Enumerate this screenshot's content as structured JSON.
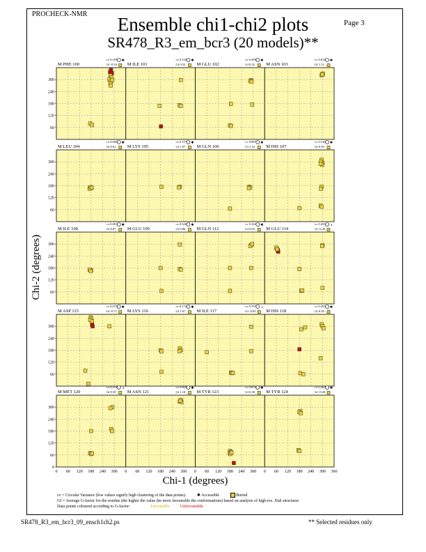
{
  "header": {
    "program": "PROCHECK-NMR",
    "page_label": "Page  3",
    "title": "Ensemble chi1-chi2 plots",
    "subtitle": "SR478_R3_em_bcr3 (20 models)**"
  },
  "footnotes": {
    "cv_line": "cv = Circular Variance (low values signify high clustering of the data points).",
    "accessible_label": "Accessible",
    "buried_label": "Buried",
    "gf_line": "Gf = Average G-factor for the residue (the higher the value the more favourable the conformations) based on analysis of high-res. Xtal structures",
    "colour_line": "Data points coloured according to G-factor:",
    "favourable_label": "Favourable",
    "unfavourable_label": "Unfavourable"
  },
  "footer": {
    "filename": "SR478_R3_em_bcr3_09_ensch1ch2.ps",
    "selected_note": "** Selected residues only"
  },
  "colors": {
    "panel_bg": "#fdf8b0",
    "favourable": "#f0d030",
    "unfavourable": "#c01010",
    "grid": "#999999"
  },
  "chart_data": {
    "type": "scatter",
    "xlabel": "Chi-1 (degrees)",
    "ylabel": "Chi-2 (degrees)",
    "xlim": [
      0,
      360
    ],
    "ylim": [
      0,
      360
    ],
    "xticks": [
      0,
      60,
      120,
      180,
      240,
      300,
      360
    ],
    "xtick_labels": [
      "0",
      "60",
      "120",
      "180",
      "240",
      "300",
      "360"
    ],
    "yticks": [
      0,
      60,
      120,
      180,
      240,
      300
    ],
    "ytick_labels": [
      "0",
      "60",
      "120",
      "180",
      "240",
      "300"
    ],
    "grid": true,
    "panels": [
      {
        "label": "M PHE 100",
        "cv": "0.183",
        "gf": "-0.16",
        "access": "accessible",
        "points": [
          [
            283,
            348,
            "u"
          ],
          [
            278,
            338,
            "u"
          ],
          [
            288,
            332,
            "u"
          ],
          [
            280,
            320,
            "f"
          ],
          [
            285,
            310,
            "f"
          ],
          [
            275,
            300,
            "f"
          ],
          [
            282,
            290,
            "f"
          ],
          [
            280,
            280,
            "f"
          ],
          [
            282,
            270,
            "f"
          ],
          [
            290,
            298,
            "f"
          ],
          [
            175,
            80,
            "f"
          ],
          [
            185,
            72,
            "f"
          ]
        ]
      },
      {
        "label": "M ILE 101",
        "cv": "0.232",
        "gf": "0.52",
        "access": "accessible",
        "points": [
          [
            285,
            298,
            "f"
          ],
          [
            278,
            172,
            "f"
          ],
          [
            285,
            168,
            "f"
          ],
          [
            175,
            168,
            "f"
          ],
          [
            182,
            65,
            "u"
          ]
        ]
      },
      {
        "label": "M GLU 102",
        "cv": "0.439",
        "gf": "0.52",
        "access": "accessible",
        "points": [
          [
            290,
            298,
            "f"
          ],
          [
            285,
            292,
            "f"
          ],
          [
            292,
            290,
            "f"
          ],
          [
            295,
            175,
            "f"
          ],
          [
            185,
            178,
            "f"
          ],
          [
            180,
            70,
            "f"
          ],
          [
            186,
            68,
            "f"
          ]
        ]
      },
      {
        "label": "M ASN 103",
        "cv": "0.012",
        "gf": "1.12",
        "access": "accessible",
        "points": [
          [
            300,
            328,
            "f"
          ],
          [
            295,
            322,
            "f"
          ],
          [
            302,
            330,
            "f"
          ],
          [
            298,
            325,
            "f"
          ]
        ]
      },
      {
        "label": "M LEU 104",
        "cv": "0.002",
        "gf": "0.61",
        "access": "accessible",
        "points": [
          [
            175,
            170,
            "f"
          ],
          [
            180,
            168,
            "f"
          ],
          [
            172,
            165,
            "f"
          ],
          [
            178,
            173,
            "f"
          ],
          [
            183,
            170,
            "f"
          ]
        ]
      },
      {
        "label": "M LYS 105",
        "cv": "0.157",
        "gf": "1.07",
        "access": "accessible",
        "points": [
          [
            185,
            175,
            "f"
          ],
          [
            280,
            175,
            "f"
          ],
          [
            275,
            172,
            "f"
          ]
        ]
      },
      {
        "label": "M GLN 106",
        "cv": "0.067",
        "gf": "1.16",
        "access": "accessible",
        "points": [
          [
            280,
            175,
            "f"
          ],
          [
            285,
            172,
            "f"
          ],
          [
            278,
            168,
            "f"
          ],
          [
            180,
            65,
            "f"
          ]
        ]
      },
      {
        "label": "M HIS 107",
        "cv": "0.310",
        "gf": "0.59",
        "access": "accessible",
        "points": [
          [
            295,
            310,
            "f"
          ],
          [
            300,
            295,
            "f"
          ],
          [
            292,
            300,
            "f"
          ],
          [
            298,
            285,
            "f"
          ],
          [
            290,
            290,
            "f"
          ],
          [
            295,
            175,
            "f"
          ],
          [
            292,
            165,
            "f"
          ],
          [
            290,
            80,
            "f"
          ],
          [
            295,
            75,
            "f"
          ],
          [
            180,
            68,
            "f"
          ]
        ]
      },
      {
        "label": "M ILE 108",
        "cv": "0.001",
        "gf": "0.87",
        "access": "accessible",
        "points": [
          [
            175,
            170,
            "f"
          ],
          [
            180,
            168,
            "f"
          ],
          [
            172,
            172,
            "f"
          ],
          [
            178,
            165,
            "f"
          ]
        ]
      },
      {
        "label": "M GLU 109",
        "cv": "0.326",
        "gf": "0.86",
        "access": "accessible",
        "points": [
          [
            280,
            298,
            "f"
          ],
          [
            280,
            175,
            "f"
          ],
          [
            285,
            172,
            "f"
          ],
          [
            180,
            180,
            "f"
          ],
          [
            185,
            65,
            "f"
          ]
        ]
      },
      {
        "label": "M GLN 112",
        "cv": "0.321",
        "gf": "0.65",
        "access": "accessible",
        "points": [
          [
            290,
            295,
            "f"
          ],
          [
            285,
            290,
            "f"
          ],
          [
            295,
            300,
            "f"
          ],
          [
            290,
            180,
            "f"
          ],
          [
            180,
            180,
            "f"
          ],
          [
            180,
            65,
            "f"
          ]
        ]
      },
      {
        "label": "M GLU 114",
        "cv": "0.453",
        "gf": "-0.20",
        "access": "buried",
        "points": [
          [
            62,
            278,
            "u"
          ],
          [
            68,
            270,
            "u"
          ],
          [
            70,
            262,
            "u"
          ],
          [
            60,
            282,
            "f"
          ],
          [
            65,
            274,
            "f"
          ],
          [
            300,
            295,
            "f"
          ],
          [
            298,
            290,
            "f"
          ],
          [
            180,
            175,
            "f"
          ],
          [
            190,
            65,
            "f"
          ],
          [
            195,
            68,
            "f"
          ],
          [
            300,
            80,
            "f"
          ]
        ]
      },
      {
        "label": "M ASP 115",
        "cv": "0.075",
        "gf": "-0.71",
        "access": "accessible",
        "points": [
          [
            178,
            345,
            "f"
          ],
          [
            182,
            338,
            "f"
          ],
          [
            175,
            332,
            "f"
          ],
          [
            185,
            325,
            "f"
          ],
          [
            185,
            308,
            "u"
          ],
          [
            188,
            300,
            "u"
          ],
          [
            275,
            300,
            "f"
          ],
          [
            150,
            78,
            "f"
          ],
          [
            165,
            12,
            "f"
          ]
        ]
      },
      {
        "label": "M LYS 116",
        "cv": "0.172",
        "gf": "1.07",
        "access": "accessible",
        "points": [
          [
            280,
            190,
            "f"
          ],
          [
            285,
            180,
            "f"
          ],
          [
            278,
            175,
            "f"
          ],
          [
            180,
            180,
            "f"
          ],
          [
            185,
            175,
            "f"
          ],
          [
            185,
            72,
            "f"
          ]
        ]
      },
      {
        "label": "M ILE 117",
        "cv": "0.707",
        "gf": "-0.03",
        "access": "buried",
        "points": [
          [
            290,
            298,
            "f"
          ],
          [
            290,
            175,
            "f"
          ],
          [
            60,
            170,
            "f"
          ],
          [
            185,
            68,
            "f"
          ],
          [
            190,
            65,
            "f"
          ],
          [
            195,
            66,
            "f"
          ]
        ]
      },
      {
        "label": "M HIS 118",
        "cv": "0.291",
        "gf": "0.50",
        "access": "accessible",
        "points": [
          [
            295,
            310,
            "f"
          ],
          [
            300,
            300,
            "f"
          ],
          [
            305,
            290,
            "f"
          ],
          [
            210,
            295,
            "f"
          ],
          [
            190,
            285,
            "f"
          ],
          [
            180,
            185,
            "u"
          ],
          [
            290,
            140,
            "f"
          ],
          [
            185,
            65,
            "f"
          ],
          [
            200,
            60,
            "f"
          ]
        ]
      },
      {
        "label": "M MET 120",
        "cv": "0.414",
        "gf": "0.59",
        "access": "buried",
        "points": [
          [
            290,
            300,
            "f"
          ],
          [
            280,
            295,
            "f"
          ],
          [
            285,
            190,
            "f"
          ],
          [
            288,
            180,
            "f"
          ],
          [
            180,
            180,
            "f"
          ],
          [
            175,
            70,
            "f"
          ],
          [
            180,
            65,
            "f"
          ],
          [
            185,
            68,
            "f"
          ]
        ]
      },
      {
        "label": "M ASN 121",
        "cv": "0.002",
        "gf": "1.10",
        "access": "accessible",
        "points": [
          [
            285,
            335,
            "f"
          ],
          [
            280,
            328,
            "f"
          ],
          [
            288,
            325,
            "f"
          ],
          [
            282,
            332,
            "f"
          ]
        ]
      },
      {
        "label": "M TYR 123",
        "cv": "0.015",
        "gf": "0.30",
        "access": "accessible",
        "points": [
          [
            180,
            80,
            "f"
          ],
          [
            185,
            75,
            "f"
          ],
          [
            178,
            70,
            "f"
          ],
          [
            182,
            65,
            "f"
          ],
          [
            188,
            72,
            "f"
          ],
          [
            200,
            20,
            "u"
          ]
        ]
      },
      {
        "label": "M TYR 124",
        "cv": "0.263",
        "gf": "-0.20",
        "access": "accessible",
        "points": [
          [
            185,
            280,
            "f"
          ],
          [
            180,
            275,
            "f"
          ],
          [
            188,
            270,
            "f"
          ],
          [
            175,
            85,
            "f"
          ],
          [
            180,
            80,
            "f"
          ]
        ]
      }
    ]
  }
}
